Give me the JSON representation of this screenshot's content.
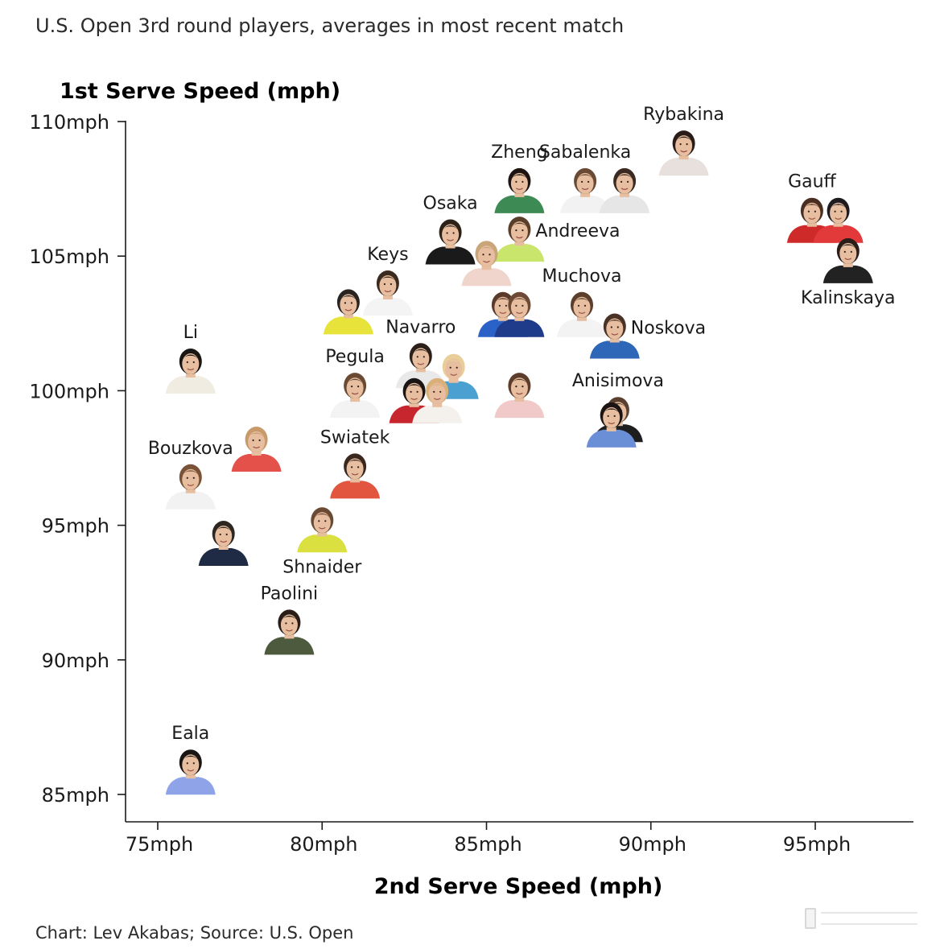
{
  "title": "U.S. Open 3rd round players, averages in most recent match",
  "credit": "Chart: Lev Akabas; Source: U.S. Open",
  "chart_data": {
    "type": "scatter",
    "title": "U.S. Open 3rd round players, averages in most recent match",
    "xlabel": "2nd Serve Speed (mph)",
    "ylabel": "1st Serve Speed (mph)",
    "xlim": [
      74,
      98
    ],
    "ylim": [
      84,
      110
    ],
    "xticks": [
      {
        "value": 75,
        "label": "75mph"
      },
      {
        "value": 80,
        "label": "80mph"
      },
      {
        "value": 85,
        "label": "85mph"
      },
      {
        "value": 90,
        "label": "90mph"
      },
      {
        "value": 95,
        "label": "95mph"
      }
    ],
    "yticks": [
      {
        "value": 85,
        "label": "85mph"
      },
      {
        "value": 90,
        "label": "90mph"
      },
      {
        "value": 95,
        "label": "95mph"
      },
      {
        "value": 100,
        "label": "100mph"
      },
      {
        "value": 105,
        "label": "105mph"
      },
      {
        "value": 110,
        "label": "110mph"
      }
    ],
    "grid": false,
    "points": [
      {
        "name": "Rybakina",
        "x": 91.0,
        "y": 108.8,
        "label_pos": "above",
        "colors": [
          "#2a1c18",
          "#e8e0dc"
        ]
      },
      {
        "name": "Zheng",
        "x": 86.0,
        "y": 107.4,
        "label_pos": "above",
        "colors": [
          "#1d1412",
          "#3e8a55"
        ]
      },
      {
        "name": "Sabalenka",
        "x": 88.0,
        "y": 107.4,
        "label_pos": "above",
        "colors": [
          "#6b4a35",
          "#f2f2f2"
        ]
      },
      {
        "name": "",
        "x": 89.2,
        "y": 107.4,
        "label_pos": "none",
        "colors": [
          "#3a2a22",
          "#e6e6e6"
        ]
      },
      {
        "name": "Gauff",
        "x": 94.9,
        "y": 106.3,
        "label_pos": "above",
        "colors": [
          "#4a2e22",
          "#cf2a2a"
        ]
      },
      {
        "name": "",
        "x": 95.7,
        "y": 106.3,
        "label_pos": "none",
        "colors": [
          "#1e1a20",
          "#e23a3a"
        ]
      },
      {
        "name": "Osaka",
        "x": 83.9,
        "y": 105.5,
        "label_pos": "above",
        "colors": [
          "#2d2218",
          "#1a1a1a"
        ]
      },
      {
        "name": "Andreeva",
        "x": 86.0,
        "y": 105.6,
        "label_pos": "right",
        "colors": [
          "#5a3e2a",
          "#c9e56b"
        ]
      },
      {
        "name": "",
        "x": 85.0,
        "y": 104.7,
        "label_pos": "none",
        "colors": [
          "#c9a57a",
          "#f0d5cc"
        ]
      },
      {
        "name": "Kalinskaya",
        "x": 96.0,
        "y": 104.8,
        "label_pos": "below",
        "colors": [
          "#2b1e1a",
          "#222222"
        ]
      },
      {
        "name": "Keys",
        "x": 82.0,
        "y": 103.6,
        "label_pos": "above",
        "colors": [
          "#3b2a20",
          "#f4f4f4"
        ]
      },
      {
        "name": "",
        "x": 80.8,
        "y": 102.9,
        "label_pos": "none",
        "colors": [
          "#2a2420",
          "#e8e33a"
        ]
      },
      {
        "name": "Muchova",
        "x": 87.9,
        "y": 102.8,
        "label_pos": "above",
        "colors": [
          "#5b3e2c",
          "#f3f3f3"
        ]
      },
      {
        "name": "",
        "x": 85.5,
        "y": 102.8,
        "label_pos": "none",
        "colors": [
          "#5a3a2a",
          "#2a62c8"
        ]
      },
      {
        "name": "",
        "x": 86.0,
        "y": 102.8,
        "label_pos": "none",
        "colors": [
          "#6d4a36",
          "#1f3c8a"
        ]
      },
      {
        "name": "Noskova",
        "x": 88.9,
        "y": 102.0,
        "label_pos": "right",
        "colors": [
          "#4a3226",
          "#2e66b8"
        ]
      },
      {
        "name": "Li",
        "x": 76.0,
        "y": 100.7,
        "label_pos": "above",
        "colors": [
          "#1a1614",
          "#f0ece2"
        ]
      },
      {
        "name": "Navarro",
        "x": 83.0,
        "y": 100.9,
        "label_pos": "above",
        "colors": [
          "#2c201a",
          "#e9e9e9"
        ]
      },
      {
        "name": "",
        "x": 84.0,
        "y": 100.5,
        "label_pos": "none",
        "colors": [
          "#e8cf9a",
          "#4aa0d0"
        ]
      },
      {
        "name": "Pegula",
        "x": 81.0,
        "y": 99.8,
        "label_pos": "above",
        "colors": [
          "#6b4a34",
          "#f3f3f3"
        ]
      },
      {
        "name": "",
        "x": 82.8,
        "y": 99.6,
        "label_pos": "none",
        "colors": [
          "#1a1412",
          "#c8262e"
        ]
      },
      {
        "name": "",
        "x": 83.5,
        "y": 99.6,
        "label_pos": "none",
        "colors": [
          "#d9b07a",
          "#f4f0ec"
        ]
      },
      {
        "name": "",
        "x": 86.0,
        "y": 99.8,
        "label_pos": "none",
        "colors": [
          "#5c3c2a",
          "#f1c9c9"
        ]
      },
      {
        "name": "Anisimova",
        "x": 89.0,
        "y": 98.9,
        "label_pos": "above",
        "colors": [
          "#5a4030",
          "#1e1e1e"
        ]
      },
      {
        "name": "",
        "x": 88.8,
        "y": 98.7,
        "label_pos": "none",
        "colors": [
          "#1c1412",
          "#6b8fd6"
        ]
      },
      {
        "name": "",
        "x": 78.0,
        "y": 97.8,
        "label_pos": "none",
        "colors": [
          "#c89a6a",
          "#e4504a"
        ]
      },
      {
        "name": "Bouzkova",
        "x": 76.0,
        "y": 96.4,
        "label_pos": "above",
        "colors": [
          "#7a5238",
          "#f2f2f2"
        ]
      },
      {
        "name": "Swiatek",
        "x": 81.0,
        "y": 96.8,
        "label_pos": "above",
        "colors": [
          "#3a281e",
          "#e2553e"
        ]
      },
      {
        "name": "",
        "x": 77.0,
        "y": 94.3,
        "label_pos": "none",
        "colors": [
          "#2e2620",
          "#1f2a44"
        ]
      },
      {
        "name": "Shnaider",
        "x": 80.0,
        "y": 94.8,
        "label_pos": "below",
        "colors": [
          "#6a4a32",
          "#d9e040"
        ]
      },
      {
        "name": "Paolini",
        "x": 79.0,
        "y": 91.0,
        "label_pos": "above",
        "colors": [
          "#2a1c16",
          "#4e5a3e"
        ]
      },
      {
        "name": "Eala",
        "x": 76.0,
        "y": 85.8,
        "label_pos": "above",
        "colors": [
          "#1a1614",
          "#8fa4e8"
        ]
      }
    ]
  },
  "colors": {
    "axis": "#1a1a1a",
    "text": "#1a1a1a",
    "skin": "#e7bfa0"
  },
  "icons": {
    "point_marker": "player-headshot-icon",
    "watermark": "logo-icon"
  }
}
